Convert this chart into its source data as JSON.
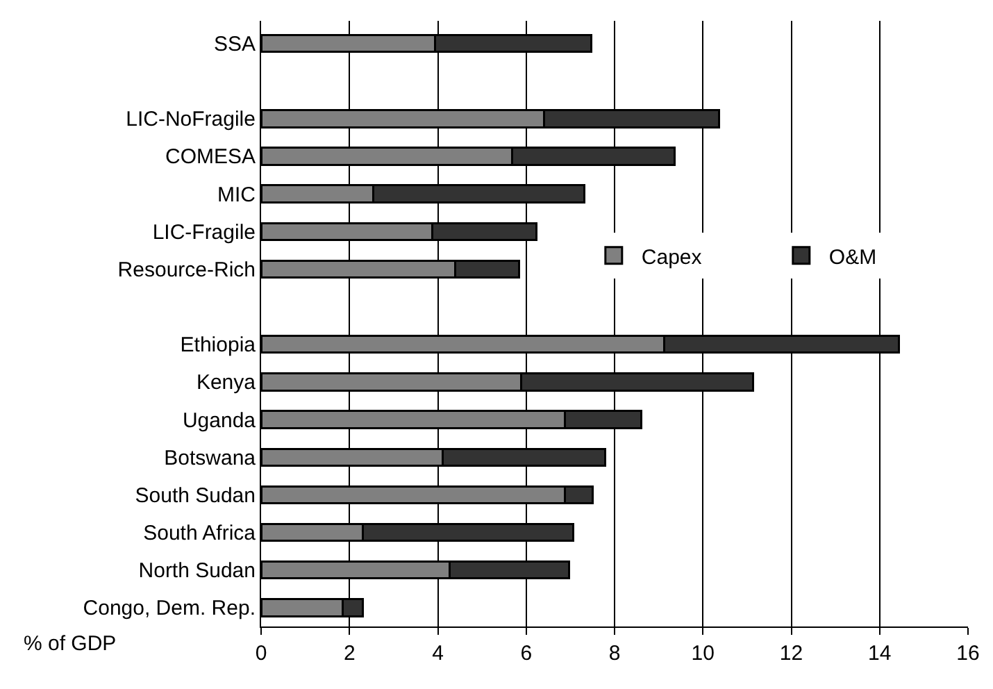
{
  "chart_data": {
    "type": "bar",
    "orientation": "horizontal",
    "stacked": true,
    "xlabel": "% of GDP",
    "categories": [
      "SSA",
      null,
      "LIC-NoFragile",
      "COMESA",
      "MIC",
      "LIC-Fragile",
      "Resource-Rich",
      null,
      "Ethiopia",
      "Kenya",
      "Uganda",
      "Botswana",
      "South Sudan",
      "South Africa",
      "North Sudan",
      "Congo, Dem. Rep."
    ],
    "series": [
      {
        "name": "Capex",
        "color": "#808080",
        "values": [
          3.94,
          null,
          6.4,
          5.68,
          2.54,
          3.88,
          4.39,
          null,
          9.12,
          5.89,
          6.88,
          4.11,
          6.88,
          2.31,
          4.26,
          1.84
        ]
      },
      {
        "name": "O&M",
        "color": "#333333",
        "values": [
          3.54,
          null,
          3.97,
          3.68,
          4.78,
          2.35,
          1.45,
          null,
          5.31,
          5.24,
          1.73,
          3.67,
          0.63,
          4.76,
          2.71,
          0.47
        ]
      }
    ],
    "xlim": [
      0,
      16
    ],
    "xticks": [
      0,
      2,
      4,
      6,
      8,
      10,
      12,
      14,
      16
    ],
    "grid": "x",
    "legend": "right"
  }
}
